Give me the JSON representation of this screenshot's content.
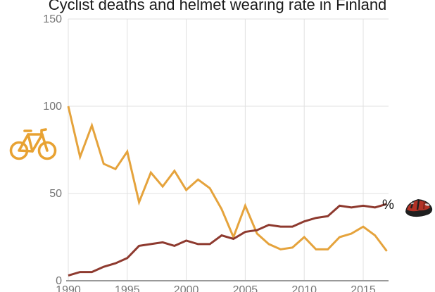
{
  "title": "Cyclist deaths and helmet wearing rate in Finland",
  "labels": {
    "percent_suffix": "%"
  },
  "colors": {
    "background": "#ffffff",
    "title_text": "#1a1a1a",
    "tick_text": "#757575",
    "gridline": "#e0e0e0",
    "axis_line": "#9a9a9a",
    "deaths_line": "#e5a33c",
    "helmet_line": "#8e3a2f",
    "bike_icon": "#e8a232",
    "helmet_icon_shell": "#b23226",
    "helmet_icon_dark": "#1f1f1f"
  },
  "icons": [
    {
      "name": "bicycle-icon",
      "meaning": "cyclist deaths series"
    },
    {
      "name": "helmet-icon",
      "meaning": "helmet wearing rate series"
    }
  ],
  "chart_data": {
    "type": "line",
    "title": "Cyclist deaths and helmet wearing rate in Finland",
    "x": [
      1990,
      1991,
      1992,
      1993,
      1994,
      1995,
      1996,
      1997,
      1998,
      1999,
      2000,
      2001,
      2002,
      2003,
      2004,
      2005,
      2006,
      2007,
      2008,
      2009,
      2010,
      2011,
      2012,
      2013,
      2014,
      2015,
      2016,
      2017
    ],
    "series": [
      {
        "name": "Cyclist deaths",
        "color": "#e5a33c",
        "values": [
          100,
          71,
          89,
          67,
          64,
          74,
          45,
          62,
          54,
          63,
          52,
          58,
          53,
          41,
          25,
          43,
          27,
          21,
          18,
          19,
          25,
          18,
          18,
          25,
          27,
          31,
          26,
          17
        ]
      },
      {
        "name": "Helmet wearing rate %",
        "color": "#8e3a2f",
        "values": [
          3,
          5,
          5,
          8,
          10,
          13,
          20,
          21,
          22,
          20,
          23,
          21,
          21,
          26,
          24,
          28,
          29,
          32,
          31,
          31,
          34,
          36,
          37,
          43,
          42,
          43,
          42,
          44
        ]
      }
    ],
    "xticks": [
      1990,
      1995,
      2000,
      2005,
      2010,
      2015
    ],
    "yticks": [
      0,
      50,
      100,
      150
    ],
    "xlim": [
      1990,
      2017.3
    ],
    "ylim": [
      0,
      150
    ],
    "grid": true,
    "legend_position": "none",
    "right_axis_label": "%"
  }
}
